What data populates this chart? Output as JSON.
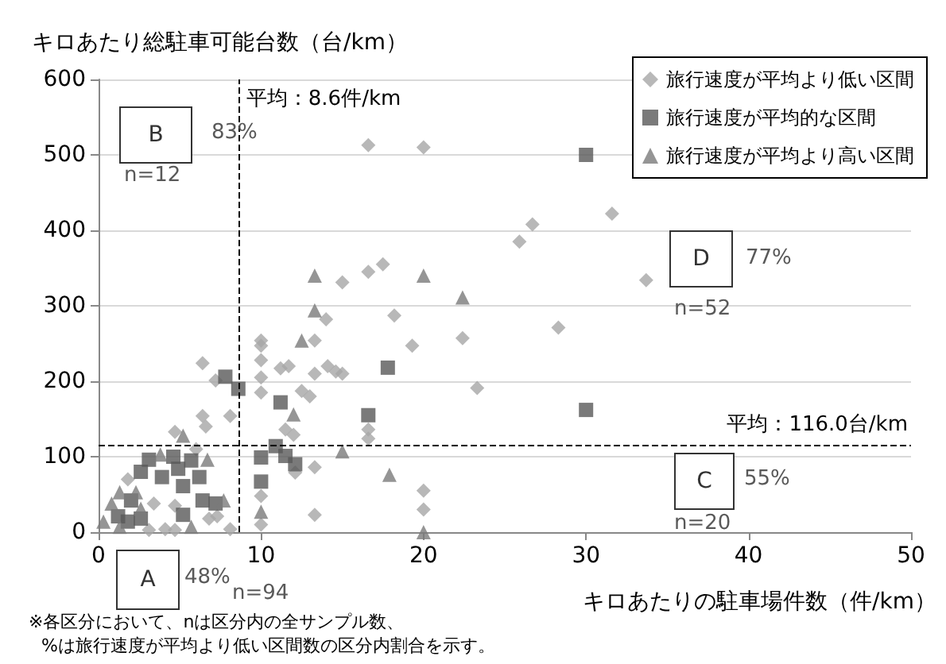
{
  "chart_data": {
    "type": "scatter",
    "ylabel": "キロあたり総駐車可能台数（台/km）",
    "xlabel": "キロあたりの駐車場件数（件/km）",
    "xlim": [
      0,
      50
    ],
    "ylim": [
      0,
      600
    ],
    "xticks": [
      0,
      10,
      20,
      30,
      40,
      50
    ],
    "yticks": [
      0,
      100,
      200,
      300,
      400,
      500,
      600
    ],
    "grid": "y",
    "legend": "top right",
    "series": [
      {
        "name": "旅行速度が平均より低い区間",
        "color": "#a6a6a6",
        "marker": "diamond",
        "x": [
          16.6,
          20,
          25.9,
          26.7,
          17.5,
          16.6,
          15,
          14,
          18.2,
          13.3,
          22.4,
          19.3,
          28.3,
          10,
          10,
          10,
          10,
          10,
          11.2,
          11.7,
          13.3,
          14.1,
          14.6,
          15,
          12.5,
          13,
          23.3,
          11.5,
          12,
          16.6,
          16.6,
          12.1,
          13.3,
          10,
          10,
          13.3,
          20,
          20,
          31.6,
          33.7,
          6.4,
          7.2,
          8.1,
          6.4,
          6.6,
          4.7,
          6,
          1.8,
          3.4,
          4.7,
          6.8,
          7.3,
          3.1,
          4.1,
          4.7,
          8.1
        ],
        "values": [
          513,
          510,
          385,
          408,
          355,
          345,
          331,
          282,
          287,
          254,
          257,
          247,
          271,
          254,
          247,
          228,
          205,
          185,
          217,
          220,
          210,
          220,
          213,
          210,
          187,
          180,
          191,
          136,
          129,
          136,
          124,
          79,
          86,
          48,
          10,
          23,
          55,
          30,
          422,
          334,
          224,
          201,
          154,
          154,
          140,
          133,
          110,
          70,
          38,
          35,
          18,
          21,
          3,
          4,
          3,
          4
        ]
      },
      {
        "name": "旅行速度が平均的な区間",
        "color": "#595959",
        "marker": "square",
        "x": [
          8.6,
          11.2,
          17.8,
          16.6,
          10.9,
          11.5,
          12.1,
          10,
          10,
          30,
          30,
          7.8,
          4.6,
          5.7,
          3.1,
          2.6,
          3.9,
          4.9,
          6.2,
          5.2,
          6.4,
          7.2,
          5.2,
          1.2,
          2,
          2.6,
          1.8
        ],
        "values": [
          190,
          172,
          218,
          155,
          114,
          101,
          90,
          99,
          67,
          500,
          162,
          206,
          100,
          95,
          96,
          80,
          73,
          84,
          73,
          61,
          42,
          38,
          23,
          21,
          42,
          18,
          14
        ]
      },
      {
        "name": "旅行速度が平均より高い区間",
        "color": "#7a7a7a",
        "marker": "triangle",
        "x": [
          13.3,
          20,
          13.3,
          12.5,
          22.4,
          12,
          15,
          17.9,
          10,
          20,
          5.2,
          3.8,
          6.7,
          7.7,
          1.3,
          2.3,
          0.8,
          2.6,
          0.3,
          1.3,
          5.7
        ],
        "values": [
          340,
          340,
          294,
          254,
          311,
          156,
          107,
          76,
          27,
          0,
          128,
          103,
          96,
          42,
          53,
          53,
          38,
          31,
          14,
          7,
          7
        ]
      }
    ],
    "ref_lines": [
      {
        "axis": "x",
        "value": 8.6,
        "label": "平均：8.6件/km",
        "line_style": "dashed"
      },
      {
        "axis": "y",
        "value": 116.0,
        "label": "平均：116.0台/km",
        "line_style": "dashed"
      }
    ],
    "annotations": [
      "A",
      "48%",
      "n=94",
      "B",
      "83%",
      "n=12",
      "C",
      "55%",
      "n=20",
      "D",
      "77%",
      "n=52",
      "※各区分において、nは区分内の全サンプル数、",
      "%は旅行速度が平均より低い区間数の区分内割合を示す。"
    ]
  }
}
